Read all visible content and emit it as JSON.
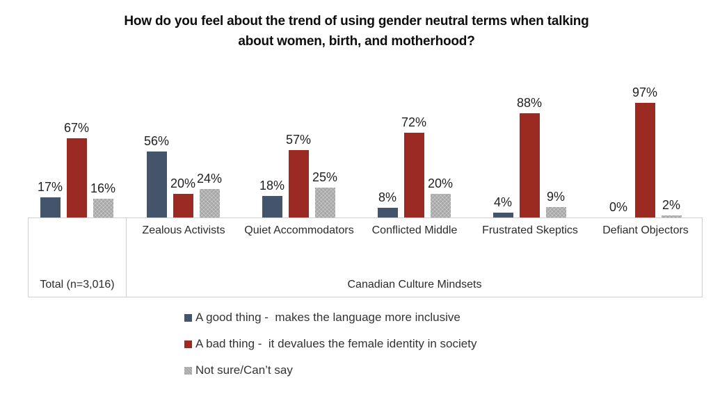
{
  "chart_data": {
    "type": "bar",
    "title": "How do you feel about the trend of using gender neutral terms when talking about women, birth, and motherhood?",
    "categories": [
      "Total (n=3,016)",
      "Zealous Activists",
      "Quiet Accommodators",
      "Conflicted Middle",
      "Frustrated Skeptics",
      "Defiant Objectors"
    ],
    "group_axis_label": "Canadian Culture Mindsets",
    "series": [
      {
        "name": "A good thing -  makes the language more inclusive",
        "color": "#44546A",
        "pattern": false,
        "values": [
          17,
          56,
          18,
          8,
          4,
          0
        ]
      },
      {
        "name": "A bad thing -  it devalues the female identity in society",
        "color": "#9B2B22",
        "pattern": false,
        "values": [
          67,
          20,
          57,
          72,
          88,
          97
        ]
      },
      {
        "name": "Not sure/Can’t say",
        "color": "#A6A6A6",
        "pattern": true,
        "values": [
          16,
          24,
          25,
          20,
          9,
          2
        ]
      }
    ],
    "value_suffix": "%",
    "ylim": [
      0,
      100
    ],
    "grid": false,
    "data_labels": true,
    "legend_position": "bottom-left",
    "axis_border_color": "#CFCFCF"
  }
}
